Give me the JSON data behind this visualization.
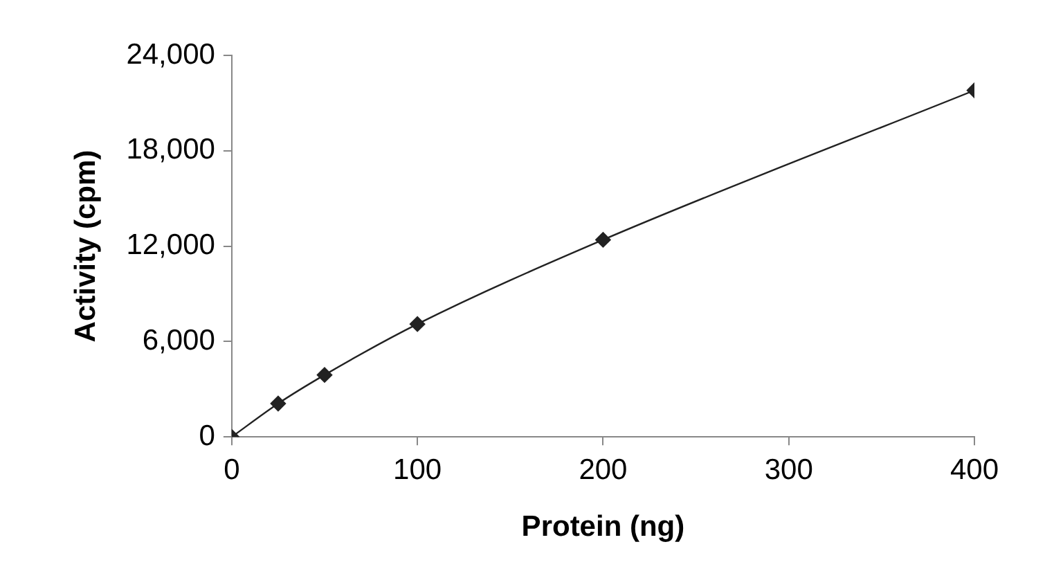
{
  "chart_data": {
    "type": "line",
    "xlabel": "Protein (ng)",
    "ylabel": "Activity (cpm)",
    "x": [
      0,
      25,
      50,
      100,
      200,
      400
    ],
    "series": [
      {
        "color": "#222222",
        "values": [
          0,
          2100,
          3900,
          7100,
          12400,
          21800
        ]
      }
    ],
    "xlim": [
      0,
      400
    ],
    "xticks": [
      0,
      100,
      200,
      300,
      400
    ],
    "ylim": [
      0,
      24000
    ],
    "yticks": [
      {
        "value": 0,
        "label": "0"
      },
      {
        "value": 6000,
        "label": "6,000"
      },
      {
        "value": 12000,
        "label": "12,000"
      },
      {
        "value": 18000,
        "label": "18,000"
      },
      {
        "value": 24000,
        "label": "24,000"
      }
    ],
    "marker": "diamond",
    "legend": false,
    "grid": false
  }
}
